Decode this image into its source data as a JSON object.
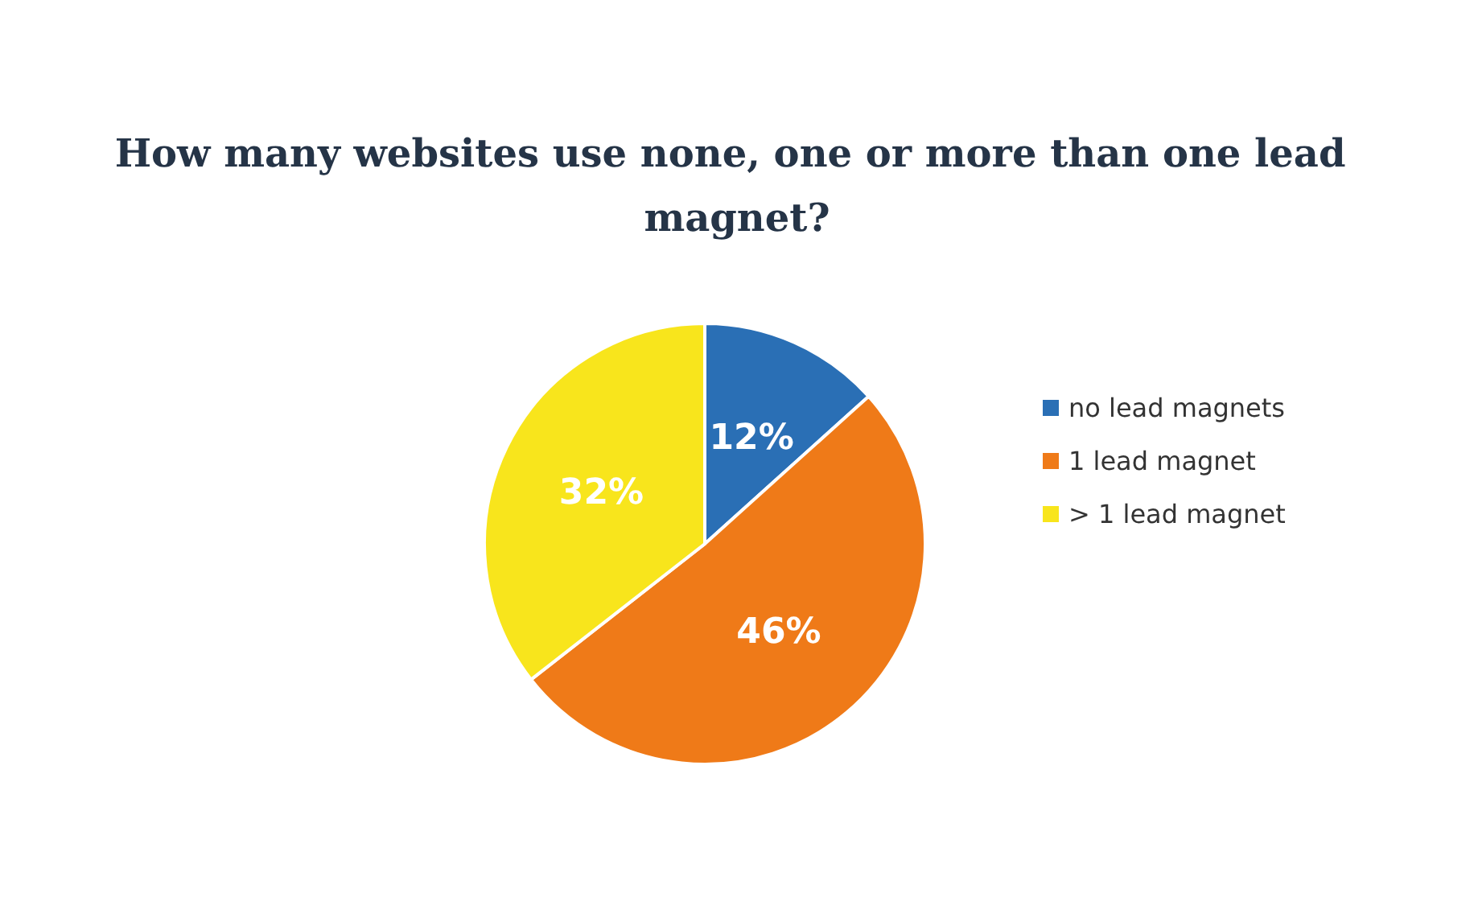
{
  "chart_data": {
    "type": "pie",
    "title": "How many websites use none, one or more than one lead magnet?",
    "categories": [
      "no lead magnets",
      "1 lead magnet",
      "> 1 lead magnet"
    ],
    "values": [
      12,
      46,
      32
    ],
    "colors": [
      "#2a6fb5",
      "#ef7a18",
      "#f8e51c"
    ],
    "value_labels": [
      "12%",
      "46%",
      "32%"
    ],
    "legend": "right"
  }
}
